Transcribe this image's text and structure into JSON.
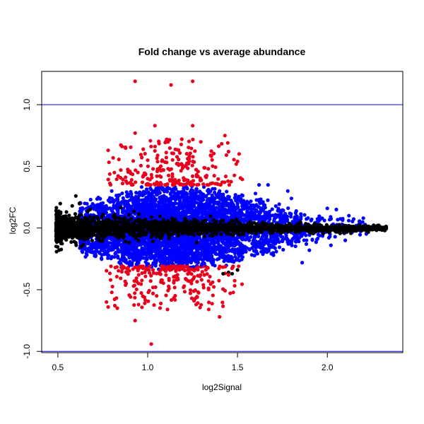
{
  "chart_data": {
    "type": "scatter",
    "title": "Fold change vs average abundance",
    "xlabel": "log2Signal",
    "ylabel": "log2FC",
    "xlim": [
      0.41,
      2.42
    ],
    "ylim": [
      -1.01,
      1.27
    ],
    "x_ticks": [
      0.5,
      1.0,
      1.5,
      2.0
    ],
    "x_tick_labels": [
      "0.5",
      "1.0",
      "1.5",
      "2.0"
    ],
    "y_ticks": [
      -1.0,
      -0.5,
      0.0,
      0.5,
      1.0
    ],
    "y_tick_labels": [
      "-1.0",
      "-0.5",
      "0.0",
      "0.5",
      "1.0"
    ],
    "reference_lines": [
      {
        "axis": "y",
        "value": 1.0,
        "color": "#0000ff"
      },
      {
        "axis": "y",
        "value": -1.0,
        "color": "#0000ff"
      }
    ],
    "series": [
      {
        "color": "#000000",
        "points": [
          [
            0.5,
            0.02
          ],
          [
            0.52,
            -0.03
          ],
          [
            0.55,
            0.06
          ],
          [
            0.58,
            -0.08
          ],
          [
            0.62,
            0.1
          ],
          [
            0.65,
            -0.05
          ],
          [
            0.7,
            0.0
          ],
          [
            0.75,
            0.04
          ],
          [
            0.8,
            -0.02
          ],
          [
            0.9,
            0.01
          ],
          [
            1.0,
            -0.01
          ],
          [
            1.1,
            0.02
          ],
          [
            1.2,
            -0.02
          ],
          [
            1.3,
            0.01
          ],
          [
            1.4,
            0.0
          ],
          [
            1.5,
            -0.01
          ],
          [
            1.6,
            0.01
          ],
          [
            1.7,
            0.0
          ],
          [
            1.8,
            -0.01
          ],
          [
            1.9,
            0.01
          ],
          [
            2.0,
            0.0
          ],
          [
            2.1,
            -0.01
          ],
          [
            2.2,
            0.01
          ],
          [
            2.27,
            -0.01
          ],
          [
            2.32,
            -0.02
          ],
          [
            0.6,
            0.26
          ],
          [
            0.62,
            0.2
          ],
          [
            0.58,
            0.18
          ],
          [
            0.63,
            -0.15
          ],
          [
            0.6,
            -0.12
          ],
          [
            1.45,
            -0.36
          ],
          [
            1.47,
            -0.37
          ],
          [
            1.5,
            -0.34
          ],
          [
            1.42,
            -0.37
          ],
          [
            0.95,
            0.06
          ],
          [
            1.25,
            -0.05
          ],
          [
            1.6,
            -0.04
          ],
          [
            1.85,
            0.05
          ]
        ]
      },
      {
        "color": "#0000ff",
        "points": [
          [
            0.65,
            0.2
          ],
          [
            0.7,
            -0.2
          ],
          [
            0.8,
            0.3
          ],
          [
            0.9,
            -0.3
          ],
          [
            1.0,
            0.25
          ],
          [
            1.1,
            -0.28
          ],
          [
            1.2,
            0.32
          ],
          [
            1.3,
            -0.3
          ],
          [
            1.4,
            0.3
          ],
          [
            1.5,
            -0.25
          ],
          [
            1.6,
            0.28
          ],
          [
            1.7,
            -0.22
          ],
          [
            1.8,
            0.24
          ],
          [
            1.9,
            -0.18
          ],
          [
            2.0,
            0.16
          ],
          [
            2.1,
            -0.1
          ],
          [
            2.2,
            0.08
          ],
          [
            1.67,
            0.35
          ],
          [
            1.78,
            0.3
          ],
          [
            1.86,
            -0.28
          ],
          [
            2.05,
            0.15
          ],
          [
            2.12,
            0.1
          ],
          [
            2.02,
            -0.14
          ],
          [
            1.62,
            0.35
          ]
        ]
      },
      {
        "color": "#e8001c",
        "points": [
          [
            0.93,
            1.19
          ],
          [
            1.13,
            1.16
          ],
          [
            1.25,
            1.19
          ],
          [
            1.04,
            0.83
          ],
          [
            0.93,
            0.77
          ],
          [
            1.19,
            0.72
          ],
          [
            1.43,
            0.75
          ],
          [
            1.25,
            0.83
          ],
          [
            1.5,
            0.54
          ],
          [
            1.45,
            0.62
          ],
          [
            0.78,
            0.63
          ],
          [
            0.85,
            0.47
          ],
          [
            1.35,
            0.59
          ],
          [
            0.93,
            -0.75
          ],
          [
            1.02,
            -0.94
          ],
          [
            0.78,
            -0.64
          ],
          [
            1.11,
            -0.66
          ],
          [
            1.34,
            -0.66
          ],
          [
            1.4,
            -0.72
          ],
          [
            1.27,
            -0.62
          ],
          [
            1.05,
            -0.55
          ],
          [
            0.88,
            -0.45
          ],
          [
            1.2,
            -0.48
          ],
          [
            1.45,
            -0.38
          ],
          [
            0.95,
            -0.38
          ],
          [
            1.3,
            -0.42
          ],
          [
            1.1,
            -0.35
          ],
          [
            0.82,
            -0.32
          ],
          [
            1.25,
            0.42
          ],
          [
            1.0,
            0.4
          ],
          [
            1.35,
            0.36
          ],
          [
            1.14,
            0.38
          ],
          [
            0.88,
            0.38
          ],
          [
            1.0,
            0.55
          ],
          [
            1.17,
            0.52
          ]
        ]
      }
    ],
    "background_cloud": {
      "note_free": true,
      "black_band": {
        "x_range": [
          0.49,
          2.33
        ],
        "half_width_start": 0.12,
        "half_width_end": 0.02,
        "n": 1800
      },
      "blue_cloud": {
        "x_range": [
          0.62,
          2.22
        ],
        "peak_x": 1.15,
        "peak_spread": 0.34,
        "min_spread": 0.05,
        "n": 4200
      },
      "red_upper": {
        "x_range": [
          0.73,
          1.55
        ],
        "y_range": [
          0.35,
          0.72
        ],
        "n": 230
      },
      "red_lower": {
        "x_range": [
          0.72,
          1.55
        ],
        "y_range": [
          -0.65,
          -0.31
        ],
        "n": 230
      }
    }
  }
}
